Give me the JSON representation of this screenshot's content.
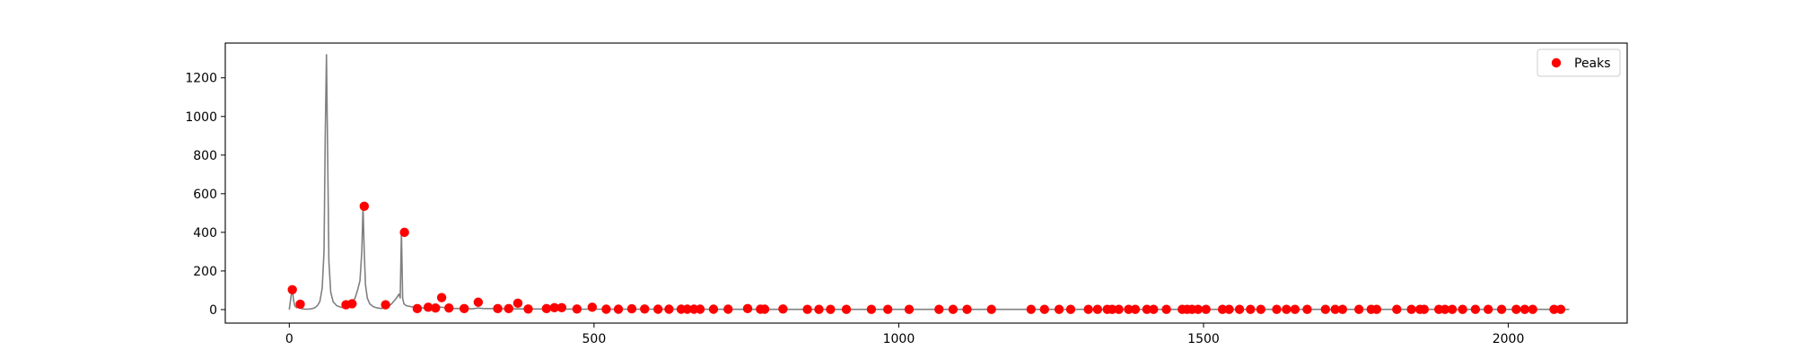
{
  "colors": {
    "spectrum_line": "#808080",
    "peak_marker": "#ff0000",
    "axes": "#000000",
    "background": "#ffffff"
  },
  "chart_data": {
    "type": "line",
    "title": "",
    "xlabel": "",
    "ylabel": "",
    "xlim": [
      -105,
      2195
    ],
    "ylim": [
      -70,
      1380
    ],
    "grid": false,
    "legend_position": "top-right",
    "x_ticks": [
      0,
      500,
      1000,
      1500,
      2000
    ],
    "y_ticks": [
      0,
      200,
      400,
      600,
      800,
      1000,
      1200
    ],
    "series": [
      {
        "name": "",
        "style": "line",
        "x": [
          0,
          3,
          5,
          7,
          9,
          12,
          15,
          18,
          20,
          24,
          28,
          33,
          38,
          42,
          46,
          50,
          54,
          57,
          59,
          61,
          63,
          65,
          68,
          72,
          78,
          85,
          92,
          96,
          100,
          104,
          108,
          112,
          116,
          119,
          121,
          123,
          125,
          128,
          132,
          138,
          145,
          152,
          158,
          164,
          168,
          172,
          176,
          180,
          182,
          184,
          186,
          188,
          192,
          200,
          210,
          225,
          240,
          245,
          250,
          270,
          300,
          310,
          320,
          400,
          500,
          600,
          800,
          1000,
          1200,
          1500,
          1800,
          2000,
          2100
        ],
        "y": [
          0,
          70,
          105,
          50,
          20,
          10,
          30,
          10,
          5,
          3,
          2,
          3,
          5,
          10,
          20,
          40,
          110,
          300,
          900,
          1320,
          800,
          250,
          90,
          40,
          20,
          12,
          10,
          20,
          30,
          40,
          60,
          100,
          150,
          300,
          535,
          300,
          130,
          60,
          30,
          15,
          8,
          6,
          10,
          20,
          30,
          45,
          60,
          80,
          60,
          400,
          60,
          30,
          20,
          15,
          10,
          8,
          10,
          15,
          12,
          6,
          4,
          8,
          5,
          3,
          2,
          2,
          1,
          1,
          1,
          1,
          1,
          1,
          1
        ]
      },
      {
        "name": "Peaks",
        "style": "markers",
        "x": [
          5,
          18,
          93,
          103,
          123,
          158,
          189,
          210,
          228,
          240,
          250,
          262,
          287,
          310,
          342,
          360,
          375,
          392,
          422,
          435,
          447,
          472,
          497,
          520,
          540,
          562,
          583,
          605,
          623,
          643,
          653,
          664,
          674,
          696,
          720,
          752,
          773,
          780,
          810,
          850,
          869,
          888,
          914,
          955,
          982,
          1017,
          1066,
          1089,
          1112,
          1152,
          1217,
          1239,
          1263,
          1282,
          1311,
          1326,
          1342,
          1350,
          1361,
          1377,
          1388,
          1407,
          1418,
          1439,
          1465,
          1473,
          1481,
          1491,
          1504,
          1531,
          1542,
          1559,
          1577,
          1594,
          1620,
          1636,
          1650,
          1670,
          1700,
          1716,
          1728,
          1755,
          1775,
          1784,
          1817,
          1841,
          1855,
          1862,
          1886,
          1896,
          1908,
          1925,
          1946,
          1967,
          1989,
          2013,
          2027,
          2040,
          2075,
          2086
        ],
        "y": [
          103,
          28,
          25,
          30,
          535,
          25,
          400,
          5,
          12,
          8,
          62,
          8,
          5,
          38,
          5,
          5,
          33,
          3,
          5,
          10,
          10,
          3,
          12,
          2,
          2,
          4,
          3,
          2,
          2,
          2,
          2,
          2,
          2,
          2,
          2,
          5,
          2,
          2,
          3,
          1,
          1,
          1,
          1,
          1,
          1,
          1,
          1,
          1,
          1,
          1,
          1,
          1,
          1,
          1,
          1,
          1,
          1,
          1,
          1,
          1,
          1,
          1,
          1,
          1,
          1,
          1,
          1,
          1,
          1,
          1,
          1,
          1,
          1,
          1,
          1,
          1,
          1,
          1,
          1,
          1,
          1,
          1,
          1,
          1,
          1,
          1,
          1,
          1,
          1,
          1,
          1,
          1,
          1,
          1,
          1,
          1,
          1,
          1,
          1,
          1
        ]
      }
    ]
  }
}
